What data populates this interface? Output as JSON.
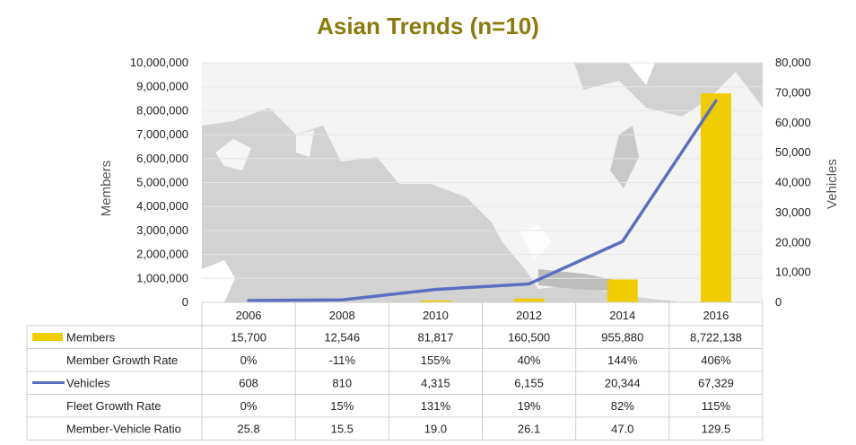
{
  "chart_data": {
    "type": "bar",
    "title": "Asian Trends (n=10)",
    "categories": [
      "2006",
      "2008",
      "2010",
      "2012",
      "2014",
      "2016"
    ],
    "series": [
      {
        "name": "Members",
        "type": "bar",
        "axis": "left",
        "color": "#f0cd00",
        "values": [
          15700,
          12546,
          81817,
          160500,
          955880,
          8722138
        ]
      },
      {
        "name": "Vehicles",
        "type": "line",
        "axis": "right",
        "color": "#5b6fbf",
        "values": [
          608,
          810,
          4315,
          6155,
          20344,
          67329
        ]
      }
    ],
    "ylabel": "Members",
    "y2label": "Vehicles",
    "ylim": [
      0,
      10000000
    ],
    "y2lim": [
      0,
      80000
    ],
    "yticks": [
      "0",
      "1,000,000",
      "2,000,000",
      "3,000,000",
      "4,000,000",
      "5,000,000",
      "6,000,000",
      "7,000,000",
      "8,000,000",
      "9,000,000",
      "10,000,000"
    ],
    "y2ticks": [
      "0",
      "10,000",
      "20,000",
      "30,000",
      "40,000",
      "50,000",
      "60,000",
      "70,000",
      "80,000"
    ],
    "grid": true,
    "background": "map of Asia",
    "table": {
      "rows": [
        {
          "label": "Members",
          "legend": "bar",
          "cells": [
            "15,700",
            "12,546",
            "81,817",
            "160,500",
            "955,880",
            "8,722,138"
          ]
        },
        {
          "label": "Member Growth Rate",
          "legend": "",
          "cells": [
            "0%",
            "-11%",
            "155%",
            "40%",
            "144%",
            "406%"
          ]
        },
        {
          "label": "Vehicles",
          "legend": "line",
          "cells": [
            "608",
            "810",
            "4,315",
            "6,155",
            "20,344",
            "67,329"
          ]
        },
        {
          "label": "Fleet Growth Rate",
          "legend": "",
          "cells": [
            "0%",
            "15%",
            "131%",
            "19%",
            "82%",
            "115%"
          ]
        },
        {
          "label": "Member-Vehicle Ratio",
          "legend": "",
          "cells": [
            "25.8",
            "15.5",
            "19.0",
            "26.1",
            "47.0",
            "129.5"
          ]
        }
      ]
    }
  }
}
